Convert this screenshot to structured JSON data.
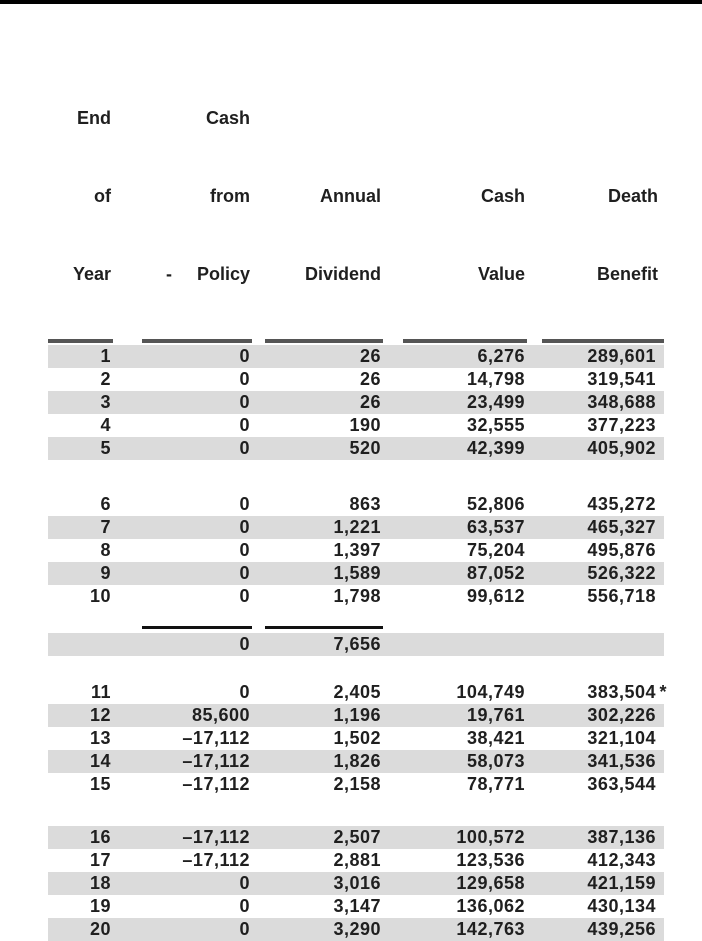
{
  "page": {
    "top_bar_color": "#000000",
    "background": "#ffffff"
  },
  "table": {
    "colors": {
      "stripe": "#dbdbdb",
      "header_rule": "#555555",
      "total_rule": "#111111",
      "text": "#1f1f1f"
    },
    "columns": [
      {
        "id": "year",
        "header_lines": [
          "End",
          "of",
          "Year"
        ]
      },
      {
        "id": "cash_from_policy",
        "header_lines": [
          "Cash",
          "from",
          "-     Policy"
        ]
      },
      {
        "id": "annual_dividend",
        "header_lines": [
          "Annual",
          "Dividend"
        ]
      },
      {
        "id": "cash_value",
        "header_lines": [
          "Cash",
          "Value"
        ]
      },
      {
        "id": "death_benefit",
        "header_lines": [
          "Death",
          "Benefit"
        ]
      }
    ],
    "groups": [
      {
        "rows": [
          {
            "year": "1",
            "cash_from_policy": "0",
            "annual_dividend": "26",
            "cash_value": "6,276",
            "death_benefit": "289,601",
            "shaded": true
          },
          {
            "year": "2",
            "cash_from_policy": "0",
            "annual_dividend": "26",
            "cash_value": "14,798",
            "death_benefit": "319,541",
            "shaded": false
          },
          {
            "year": "3",
            "cash_from_policy": "0",
            "annual_dividend": "26",
            "cash_value": "23,499",
            "death_benefit": "348,688",
            "shaded": true
          },
          {
            "year": "4",
            "cash_from_policy": "0",
            "annual_dividend": "190",
            "cash_value": "32,555",
            "death_benefit": "377,223",
            "shaded": false
          },
          {
            "year": "5",
            "cash_from_policy": "0",
            "annual_dividend": "520",
            "cash_value": "42,399",
            "death_benefit": "405,902",
            "shaded": true
          }
        ]
      },
      {
        "rows": [
          {
            "year": "6",
            "cash_from_policy": "0",
            "annual_dividend": "863",
            "cash_value": "52,806",
            "death_benefit": "435,272",
            "shaded": false
          },
          {
            "year": "7",
            "cash_from_policy": "0",
            "annual_dividend": "1,221",
            "cash_value": "63,537",
            "death_benefit": "465,327",
            "shaded": true
          },
          {
            "year": "8",
            "cash_from_policy": "0",
            "annual_dividend": "1,397",
            "cash_value": "75,204",
            "death_benefit": "495,876",
            "shaded": false
          },
          {
            "year": "9",
            "cash_from_policy": "0",
            "annual_dividend": "1,589",
            "cash_value": "87,052",
            "death_benefit": "526,322",
            "shaded": true
          },
          {
            "year": "10",
            "cash_from_policy": "0",
            "annual_dividend": "1,798",
            "cash_value": "99,612",
            "death_benefit": "556,718",
            "shaded": false
          }
        ]
      },
      {
        "rows": [
          {
            "year": "11",
            "cash_from_policy": "0",
            "annual_dividend": "2,405",
            "cash_value": "104,749",
            "death_benefit": "383,504",
            "death_benefit_note": "*",
            "shaded": false
          },
          {
            "year": "12",
            "cash_from_policy": "85,600",
            "annual_dividend": "1,196",
            "cash_value": "19,761",
            "death_benefit": "302,226",
            "shaded": true
          },
          {
            "year": "13",
            "cash_from_policy": "–17,112",
            "annual_dividend": "1,502",
            "cash_value": "38,421",
            "death_benefit": "321,104",
            "shaded": false
          },
          {
            "year": "14",
            "cash_from_policy": "–17,112",
            "annual_dividend": "1,826",
            "cash_value": "58,073",
            "death_benefit": "341,536",
            "shaded": true
          },
          {
            "year": "15",
            "cash_from_policy": "–17,112",
            "annual_dividend": "2,158",
            "cash_value": "78,771",
            "death_benefit": "363,544",
            "shaded": false
          }
        ]
      },
      {
        "rows": [
          {
            "year": "16",
            "cash_from_policy": "–17,112",
            "annual_dividend": "2,507",
            "cash_value": "100,572",
            "death_benefit": "387,136",
            "shaded": true
          },
          {
            "year": "17",
            "cash_from_policy": "–17,112",
            "annual_dividend": "2,881",
            "cash_value": "123,536",
            "death_benefit": "412,343",
            "shaded": false
          },
          {
            "year": "18",
            "cash_from_policy": "0",
            "annual_dividend": "3,016",
            "cash_value": "129,658",
            "death_benefit": "421,159",
            "shaded": true
          },
          {
            "year": "19",
            "cash_from_policy": "0",
            "annual_dividend": "3,147",
            "cash_value": "136,062",
            "death_benefit": "430,134",
            "shaded": false
          },
          {
            "year": "20",
            "cash_from_policy": "0",
            "annual_dividend": "3,290",
            "cash_value": "142,763",
            "death_benefit": "439,256",
            "shaded": true
          }
        ]
      }
    ],
    "subtotal": {
      "cash_from_policy": "0",
      "annual_dividend": "7,656",
      "shaded": true
    }
  }
}
